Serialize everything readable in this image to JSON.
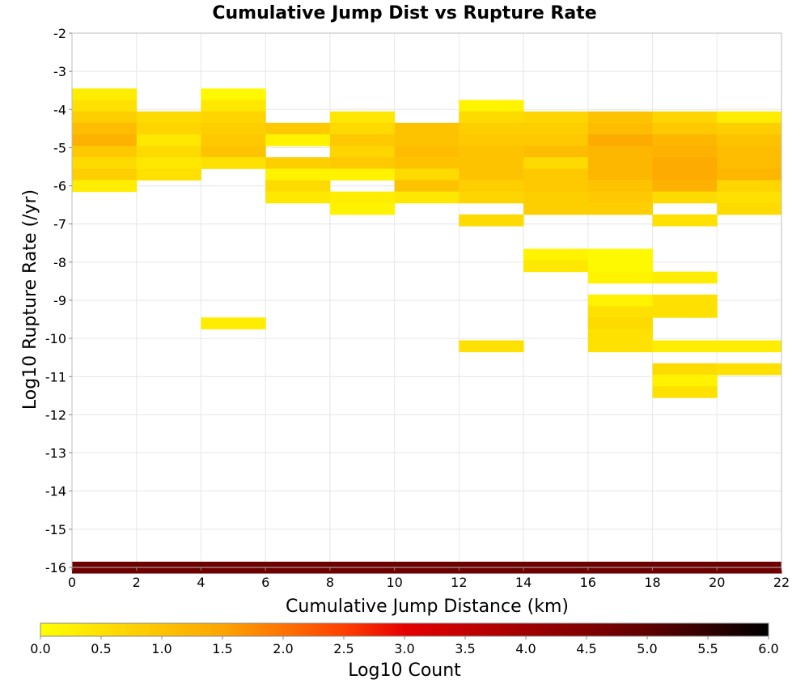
{
  "chart_data": {
    "type": "heatmap",
    "title": "Cumulative Jump Dist vs Rupture Rate",
    "xlabel": "Cumulative Jump Distance (km)",
    "ylabel": "Log10 Rupture Rate (/yr)",
    "xlim": [
      0,
      22
    ],
    "ylim": [
      -16,
      -2
    ],
    "x_bin_width": 2,
    "y_bin_height": 0.3,
    "x_ticks": [
      0,
      2,
      4,
      6,
      8,
      10,
      12,
      14,
      16,
      18,
      20,
      22
    ],
    "y_ticks": [
      -2,
      -3,
      -4,
      -5,
      -6,
      -7,
      -8,
      -9,
      -10,
      -11,
      -12,
      -13,
      -14,
      -15,
      -16
    ],
    "grid": true,
    "colorbar": {
      "label": "Log10 Count",
      "min": 0.0,
      "max": 6.0,
      "ticks": [
        "0.0",
        "0.5",
        "1.0",
        "1.5",
        "2.0",
        "2.5",
        "3.0",
        "3.5",
        "4.0",
        "4.5",
        "5.0",
        "5.5",
        "6.0"
      ],
      "stops": [
        {
          "v": 0.0,
          "color": "#ffff00"
        },
        {
          "v": 1.5,
          "color": "#fda500"
        },
        {
          "v": 2.5,
          "color": "#ff4000"
        },
        {
          "v": 3.0,
          "color": "#e60000"
        },
        {
          "v": 4.0,
          "color": "#a00000"
        },
        {
          "v": 5.0,
          "color": "#600000"
        },
        {
          "v": 6.0,
          "color": "#000000"
        }
      ]
    },
    "cells": [
      {
        "x": 0,
        "y": -3.6,
        "v": 0.3
      },
      {
        "x": 0,
        "y": -3.9,
        "v": 0.5
      },
      {
        "x": 0,
        "y": -4.2,
        "v": 0.8
      },
      {
        "x": 0,
        "y": -4.5,
        "v": 1.1
      },
      {
        "x": 0,
        "y": -4.8,
        "v": 1.3
      },
      {
        "x": 0,
        "y": -5.1,
        "v": 0.9
      },
      {
        "x": 0,
        "y": -5.4,
        "v": 0.6
      },
      {
        "x": 0,
        "y": -5.7,
        "v": 0.8
      },
      {
        "x": 0,
        "y": -6.0,
        "v": 0.3
      },
      {
        "x": 2,
        "y": -4.2,
        "v": 0.6
      },
      {
        "x": 2,
        "y": -4.5,
        "v": 0.7
      },
      {
        "x": 2,
        "y": -4.8,
        "v": 0.4
      },
      {
        "x": 2,
        "y": -5.1,
        "v": 0.6
      },
      {
        "x": 2,
        "y": -5.4,
        "v": 0.4
      },
      {
        "x": 2,
        "y": -5.7,
        "v": 0.5
      },
      {
        "x": 4,
        "y": -3.6,
        "v": 0.1
      },
      {
        "x": 4,
        "y": -3.9,
        "v": 0.4
      },
      {
        "x": 4,
        "y": -4.2,
        "v": 0.7
      },
      {
        "x": 4,
        "y": -4.5,
        "v": 0.8
      },
      {
        "x": 4,
        "y": -4.8,
        "v": 0.9
      },
      {
        "x": 4,
        "y": -5.1,
        "v": 1.0
      },
      {
        "x": 4,
        "y": -5.4,
        "v": 0.5
      },
      {
        "x": 4,
        "y": -9.6,
        "v": 0.3
      },
      {
        "x": 6,
        "y": -4.5,
        "v": 0.9
      },
      {
        "x": 6,
        "y": -4.8,
        "v": 0.2
      },
      {
        "x": 6,
        "y": -5.4,
        "v": 0.8
      },
      {
        "x": 6,
        "y": -5.7,
        "v": 0.2
      },
      {
        "x": 6,
        "y": -6.0,
        "v": 0.6
      },
      {
        "x": 6,
        "y": -6.3,
        "v": 0.4
      },
      {
        "x": 8,
        "y": -4.2,
        "v": 0.4
      },
      {
        "x": 8,
        "y": -4.5,
        "v": 0.6
      },
      {
        "x": 8,
        "y": -4.8,
        "v": 0.9
      },
      {
        "x": 8,
        "y": -5.1,
        "v": 0.7
      },
      {
        "x": 8,
        "y": -5.4,
        "v": 0.9
      },
      {
        "x": 8,
        "y": -5.7,
        "v": 0.2
      },
      {
        "x": 8,
        "y": -6.3,
        "v": 0.3
      },
      {
        "x": 8,
        "y": -6.6,
        "v": 0.2
      },
      {
        "x": 10,
        "y": -4.5,
        "v": 1.0
      },
      {
        "x": 10,
        "y": -4.8,
        "v": 1.0
      },
      {
        "x": 10,
        "y": -5.1,
        "v": 1.1
      },
      {
        "x": 10,
        "y": -5.4,
        "v": 1.0
      },
      {
        "x": 10,
        "y": -5.7,
        "v": 0.6
      },
      {
        "x": 10,
        "y": -6.0,
        "v": 1.0
      },
      {
        "x": 10,
        "y": -6.3,
        "v": 0.4
      },
      {
        "x": 12,
        "y": -3.9,
        "v": 0.2
      },
      {
        "x": 12,
        "y": -4.2,
        "v": 0.6
      },
      {
        "x": 12,
        "y": -4.5,
        "v": 0.8
      },
      {
        "x": 12,
        "y": -4.8,
        "v": 0.9
      },
      {
        "x": 12,
        "y": -5.1,
        "v": 1.0
      },
      {
        "x": 12,
        "y": -5.4,
        "v": 1.0
      },
      {
        "x": 12,
        "y": -5.7,
        "v": 1.0
      },
      {
        "x": 12,
        "y": -6.0,
        "v": 0.8
      },
      {
        "x": 12,
        "y": -6.3,
        "v": 0.7
      },
      {
        "x": 12,
        "y": -6.9,
        "v": 0.6
      },
      {
        "x": 12,
        "y": -10.2,
        "v": 0.5
      },
      {
        "x": 14,
        "y": -4.2,
        "v": 0.7
      },
      {
        "x": 14,
        "y": -4.5,
        "v": 0.8
      },
      {
        "x": 14,
        "y": -4.8,
        "v": 0.9
      },
      {
        "x": 14,
        "y": -5.1,
        "v": 1.1
      },
      {
        "x": 14,
        "y": -5.4,
        "v": 0.6
      },
      {
        "x": 14,
        "y": -5.7,
        "v": 0.9
      },
      {
        "x": 14,
        "y": -6.0,
        "v": 0.9
      },
      {
        "x": 14,
        "y": -6.3,
        "v": 0.8
      },
      {
        "x": 14,
        "y": -6.6,
        "v": 0.8
      },
      {
        "x": 14,
        "y": -7.8,
        "v": 0.2
      },
      {
        "x": 14,
        "y": -8.1,
        "v": 0.4
      },
      {
        "x": 16,
        "y": -4.2,
        "v": 1.0
      },
      {
        "x": 16,
        "y": -4.5,
        "v": 1.1
      },
      {
        "x": 16,
        "y": -4.8,
        "v": 1.4
      },
      {
        "x": 16,
        "y": -5.1,
        "v": 1.2
      },
      {
        "x": 16,
        "y": -5.4,
        "v": 1.2
      },
      {
        "x": 16,
        "y": -5.7,
        "v": 1.2
      },
      {
        "x": 16,
        "y": -6.0,
        "v": 1.0
      },
      {
        "x": 16,
        "y": -6.3,
        "v": 0.9
      },
      {
        "x": 16,
        "y": -6.6,
        "v": 0.8
      },
      {
        "x": 16,
        "y": -7.8,
        "v": 0.1
      },
      {
        "x": 16,
        "y": -8.1,
        "v": 0.1
      },
      {
        "x": 16,
        "y": -8.4,
        "v": 0.2
      },
      {
        "x": 16,
        "y": -9.0,
        "v": 0.2
      },
      {
        "x": 16,
        "y": -9.3,
        "v": 0.5
      },
      {
        "x": 16,
        "y": -9.6,
        "v": 0.6
      },
      {
        "x": 16,
        "y": -9.9,
        "v": 0.5
      },
      {
        "x": 16,
        "y": -10.2,
        "v": 0.5
      },
      {
        "x": 18,
        "y": -4.2,
        "v": 0.7
      },
      {
        "x": 18,
        "y": -4.5,
        "v": 0.9
      },
      {
        "x": 18,
        "y": -4.8,
        "v": 1.2
      },
      {
        "x": 18,
        "y": -5.1,
        "v": 1.3
      },
      {
        "x": 18,
        "y": -5.4,
        "v": 1.4
      },
      {
        "x": 18,
        "y": -5.7,
        "v": 1.4
      },
      {
        "x": 18,
        "y": -6.0,
        "v": 1.3
      },
      {
        "x": 18,
        "y": -6.3,
        "v": 0.6
      },
      {
        "x": 18,
        "y": -6.9,
        "v": 0.5
      },
      {
        "x": 18,
        "y": -8.4,
        "v": 0.3
      },
      {
        "x": 18,
        "y": -9.0,
        "v": 0.5
      },
      {
        "x": 18,
        "y": -9.3,
        "v": 0.5
      },
      {
        "x": 18,
        "y": -10.2,
        "v": 0.3
      },
      {
        "x": 18,
        "y": -10.8,
        "v": 0.6
      },
      {
        "x": 18,
        "y": -11.1,
        "v": 0.2
      },
      {
        "x": 18,
        "y": -11.4,
        "v": 0.5
      },
      {
        "x": 20,
        "y": -4.2,
        "v": 0.3
      },
      {
        "x": 20,
        "y": -4.5,
        "v": 0.8
      },
      {
        "x": 20,
        "y": -4.8,
        "v": 1.0
      },
      {
        "x": 20,
        "y": -5.1,
        "v": 1.1
      },
      {
        "x": 20,
        "y": -5.4,
        "v": 1.1
      },
      {
        "x": 20,
        "y": -5.7,
        "v": 1.2
      },
      {
        "x": 20,
        "y": -6.0,
        "v": 0.7
      },
      {
        "x": 20,
        "y": -6.3,
        "v": 0.5
      },
      {
        "x": 20,
        "y": -6.6,
        "v": 0.6
      },
      {
        "x": 20,
        "y": -10.2,
        "v": 0.3
      },
      {
        "x": 20,
        "y": -10.8,
        "v": 0.5
      },
      {
        "x": 0,
        "y": -16.0,
        "v": 4.8
      },
      {
        "x": 2,
        "y": -16.0,
        "v": 4.8
      },
      {
        "x": 4,
        "y": -16.0,
        "v": 4.8
      },
      {
        "x": 6,
        "y": -16.0,
        "v": 4.8
      },
      {
        "x": 8,
        "y": -16.0,
        "v": 4.8
      },
      {
        "x": 10,
        "y": -16.0,
        "v": 4.8
      },
      {
        "x": 12,
        "y": -16.0,
        "v": 4.8
      },
      {
        "x": 14,
        "y": -16.0,
        "v": 4.8
      },
      {
        "x": 16,
        "y": -16.0,
        "v": 4.8
      },
      {
        "x": 18,
        "y": -16.0,
        "v": 4.8
      },
      {
        "x": 20,
        "y": -16.0,
        "v": 4.8
      }
    ]
  }
}
